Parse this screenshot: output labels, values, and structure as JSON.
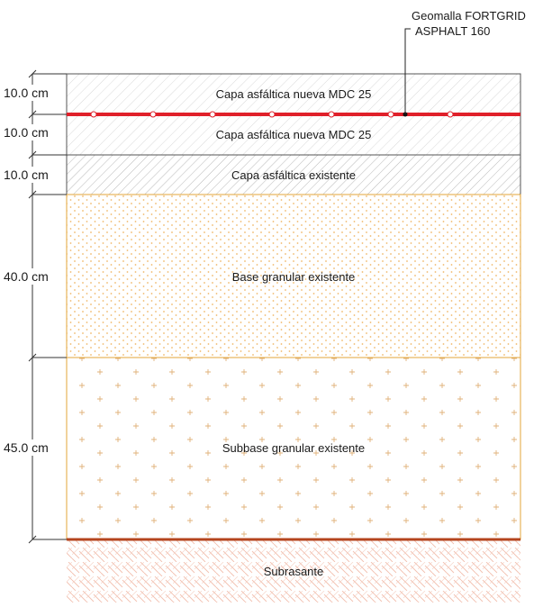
{
  "callout": {
    "line1": "Geomalla FORTGRID",
    "line2": "ASPHALT 160"
  },
  "layers": [
    {
      "thickness": "10.0 cm",
      "name": "Capa asfáltica nueva MDC 25",
      "pattern": "hatch-light"
    },
    {
      "thickness": "10.0 cm",
      "name": "Capa asfáltica nueva MDC 25",
      "pattern": "hatch-light"
    },
    {
      "thickness": "10.0 cm",
      "name": "Capa asfáltica existente",
      "pattern": "hatch-dark"
    },
    {
      "thickness": "40.0 cm",
      "name": "Base granular existente",
      "pattern": "dots"
    },
    {
      "thickness": "45.0 cm",
      "name": "Subbase granular existente",
      "pattern": "crosses"
    }
  ],
  "subgrade": {
    "name": "Subrasante",
    "pattern": "herringbone"
  },
  "colors": {
    "geogrid": "#e0202a",
    "layer_border": "#555555",
    "base_border": "#e3a63a",
    "dots": "#f0b86a",
    "crosses": "#e0b27a",
    "subgrade_line": "#b5441e",
    "subgrade_pattern": "#f2c0b0",
    "hatch": "#c8c8c8"
  }
}
